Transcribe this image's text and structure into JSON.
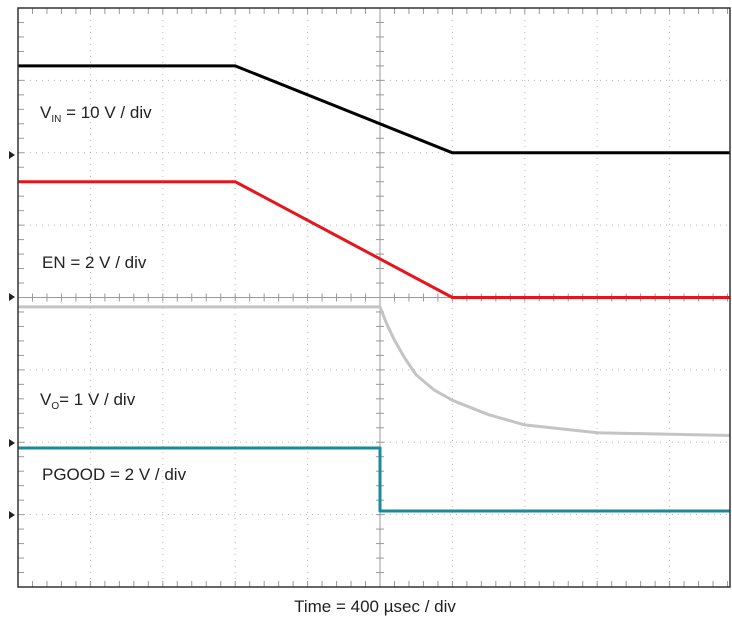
{
  "chart_data": {
    "type": "line",
    "xlim": [
      0,
      10
    ],
    "ylim": [
      0,
      8
    ],
    "xticks": [
      0,
      1,
      2,
      3,
      4,
      5,
      6,
      7,
      8,
      9,
      10
    ],
    "yticks": [
      0,
      1,
      2,
      3,
      4,
      5,
      6,
      7,
      8
    ],
    "grid": true,
    "series": [
      {
        "color": "#000000",
        "x": [
          0,
          3,
          6,
          10
        ],
        "values": [
          7.2,
          7.2,
          6.0,
          6.0
        ]
      },
      {
        "color": "#e8141b",
        "x": [
          0,
          3,
          6,
          10
        ],
        "values": [
          5.6,
          5.6,
          4.0,
          4.0
        ]
      },
      {
        "color": "#c4c4c4",
        "x": [
          0,
          5,
          5.1,
          5.2,
          5.35,
          5.5,
          5.75,
          6,
          6.5,
          7,
          8,
          10
        ],
        "values": [
          3.87,
          3.87,
          3.62,
          3.41,
          3.15,
          2.93,
          2.72,
          2.58,
          2.38,
          2.24,
          2.13,
          2.09
        ]
      },
      {
        "color": "#1a8a9a",
        "x": [
          0,
          5,
          5,
          10
        ],
        "values": [
          1.92,
          1.92,
          1.05,
          1.05
        ]
      }
    ],
    "annotations": [
      {
        "main": "V",
        "sub": "IN",
        "rest": " =  10 V / div"
      },
      {
        "main": "EN = 2 V / div"
      },
      {
        "main": "V",
        "sub": "O",
        "rest": "= 1 V / div"
      },
      {
        "main": "PGOOD = 2 V / div"
      }
    ],
    "xlabel": "Time = 400 µsec / div"
  }
}
